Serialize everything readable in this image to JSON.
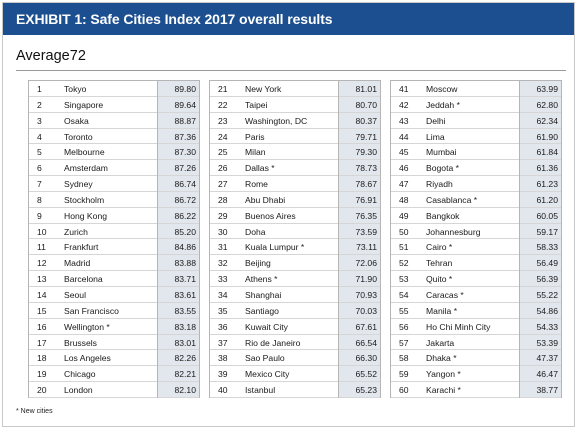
{
  "title": "EXHIBIT 1: Safe Cities Index 2017 overall results",
  "average_label": "Average",
  "average_value": "72",
  "footnote": "* New cities",
  "columns": [
    [
      {
        "rank": "1",
        "city": "Tokyo",
        "score": "89.80"
      },
      {
        "rank": "2",
        "city": "Singapore",
        "score": "89.64"
      },
      {
        "rank": "3",
        "city": "Osaka",
        "score": "88.87"
      },
      {
        "rank": "4",
        "city": "Toronto",
        "score": "87.36"
      },
      {
        "rank": "5",
        "city": "Melbourne",
        "score": "87.30"
      },
      {
        "rank": "6",
        "city": "Amsterdam",
        "score": "87.26"
      },
      {
        "rank": "7",
        "city": "Sydney",
        "score": "86.74"
      },
      {
        "rank": "8",
        "city": "Stockholm",
        "score": "86.72"
      },
      {
        "rank": "9",
        "city": "Hong Kong",
        "score": "86.22"
      },
      {
        "rank": "10",
        "city": "Zurich",
        "score": "85.20"
      },
      {
        "rank": "11",
        "city": "Frankfurt",
        "score": "84.86"
      },
      {
        "rank": "12",
        "city": "Madrid",
        "score": "83.88"
      },
      {
        "rank": "13",
        "city": "Barcelona",
        "score": "83.71"
      },
      {
        "rank": "14",
        "city": "Seoul",
        "score": "83.61"
      },
      {
        "rank": "15",
        "city": "San Francisco",
        "score": "83.55"
      },
      {
        "rank": "16",
        "city": "Wellington *",
        "score": "83.18"
      },
      {
        "rank": "17",
        "city": "Brussels",
        "score": "83.01"
      },
      {
        "rank": "18",
        "city": "Los Angeles",
        "score": "82.26"
      },
      {
        "rank": "19",
        "city": "Chicago",
        "score": "82.21"
      },
      {
        "rank": "20",
        "city": "London",
        "score": "82.10"
      }
    ],
    [
      {
        "rank": "21",
        "city": "New York",
        "score": "81.01"
      },
      {
        "rank": "22",
        "city": "Taipei",
        "score": "80.70"
      },
      {
        "rank": "23",
        "city": "Washington, DC",
        "score": "80.37"
      },
      {
        "rank": "24",
        "city": "Paris",
        "score": "79.71"
      },
      {
        "rank": "25",
        "city": "Milan",
        "score": "79.30"
      },
      {
        "rank": "26",
        "city": "Dallas *",
        "score": "78.73"
      },
      {
        "rank": "27",
        "city": "Rome",
        "score": "78.67"
      },
      {
        "rank": "28",
        "city": "Abu Dhabi",
        "score": "76.91"
      },
      {
        "rank": "29",
        "city": "Buenos Aires",
        "score": "76.35"
      },
      {
        "rank": "30",
        "city": "Doha",
        "score": "73.59"
      },
      {
        "rank": "31",
        "city": "Kuala Lumpur *",
        "score": "73.11"
      },
      {
        "rank": "32",
        "city": "Beijing",
        "score": "72.06"
      },
      {
        "rank": "33",
        "city": "Athens *",
        "score": "71.90"
      },
      {
        "rank": "34",
        "city": "Shanghai",
        "score": "70.93"
      },
      {
        "rank": "35",
        "city": "Santiago",
        "score": "70.03"
      },
      {
        "rank": "36",
        "city": "Kuwait City",
        "score": "67.61"
      },
      {
        "rank": "37",
        "city": "Rio de Janeiro",
        "score": "66.54"
      },
      {
        "rank": "38",
        "city": "Sao Paulo",
        "score": "66.30"
      },
      {
        "rank": "39",
        "city": "Mexico City",
        "score": "65.52"
      },
      {
        "rank": "40",
        "city": "Istanbul",
        "score": "65.23"
      }
    ],
    [
      {
        "rank": "41",
        "city": "Moscow",
        "score": "63.99"
      },
      {
        "rank": "42",
        "city": "Jeddah *",
        "score": "62.80"
      },
      {
        "rank": "43",
        "city": "Delhi",
        "score": "62.34"
      },
      {
        "rank": "44",
        "city": "Lima",
        "score": "61.90"
      },
      {
        "rank": "45",
        "city": "Mumbai",
        "score": "61.84"
      },
      {
        "rank": "46",
        "city": "Bogota *",
        "score": "61.36"
      },
      {
        "rank": "47",
        "city": "Riyadh",
        "score": "61.23"
      },
      {
        "rank": "48",
        "city": "Casablanca *",
        "score": "61.20"
      },
      {
        "rank": "49",
        "city": "Bangkok",
        "score": "60.05"
      },
      {
        "rank": "50",
        "city": "Johannesburg",
        "score": "59.17"
      },
      {
        "rank": "51",
        "city": "Cairo *",
        "score": "58.33"
      },
      {
        "rank": "52",
        "city": "Tehran",
        "score": "56.49"
      },
      {
        "rank": "53",
        "city": "Quito *",
        "score": "56.39"
      },
      {
        "rank": "54",
        "city": "Caracas *",
        "score": "55.22"
      },
      {
        "rank": "55",
        "city": "Manila *",
        "score": "54.86"
      },
      {
        "rank": "56",
        "city": "Ho Chi Minh City",
        "score": "54.33"
      },
      {
        "rank": "57",
        "city": "Jakarta",
        "score": "53.39"
      },
      {
        "rank": "58",
        "city": "Dhaka *",
        "score": "47.37"
      },
      {
        "rank": "59",
        "city": "Yangon *",
        "score": "46.47"
      },
      {
        "rank": "60",
        "city": "Karachi *",
        "score": "38.77"
      }
    ]
  ],
  "colors": {
    "banner": "#1b4f8f",
    "score_fill": "#e2e7ee"
  }
}
